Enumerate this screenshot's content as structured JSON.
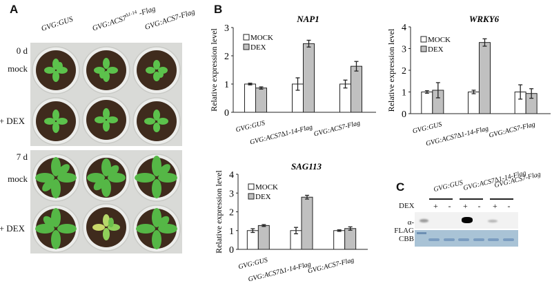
{
  "figure": {
    "panels": {
      "A": {
        "letter": "A",
        "column_headers": [
          "GVG:GUS",
          "GVG:ACS7∆1-14-Flag",
          "GVG:ACS7-Flag"
        ],
        "column_header_display": [
          {
            "base": "GVG:GUS",
            "sup": "",
            "tail": ""
          },
          {
            "base": "GVG:ACS7",
            "sup": "∆1-14",
            "tail": " -Flag"
          },
          {
            "base": "GVG:ACS7-Flag",
            "sup": "",
            "tail": ""
          }
        ],
        "timepoints": [
          {
            "label": "0 d",
            "rows": [
              "mock",
              "+ DEX"
            ]
          },
          {
            "label": "7 d",
            "rows": [
              "mock",
              "+ DEX"
            ]
          }
        ]
      },
      "B": {
        "letter": "B"
      },
      "C": {
        "letter": "C",
        "lane_groups": [
          "GVG:GUS",
          "GVG:ACS7∆1-14-Flag",
          "GVG:ACS7-Flag"
        ],
        "dex_row_label": "DEX",
        "dex_signs": [
          "+",
          "-",
          "+",
          "-",
          "+",
          "-"
        ],
        "blot_rows": [
          "α-FLAG",
          "CBB"
        ]
      }
    },
    "colors": {
      "mock_fill": "#ffffff",
      "dex_fill": "#c0c0c0",
      "bar_stroke": "#222222",
      "leaf_green": "#58b84a",
      "soil_brown": "#3e2a1c",
      "cbb_blue": "#a9c3d6"
    }
  },
  "chart_data": [
    {
      "type": "bar",
      "title": "NAP1",
      "ylabel": "Relative expression level",
      "xlabel": "",
      "ylim": [
        0,
        3
      ],
      "yticks": [
        0,
        1,
        2,
        3
      ],
      "categories": [
        "GVG:GUS",
        "GVG:ACS7∆1-14-Flag",
        "GVG:ACS7-Flag"
      ],
      "legend": [
        "MOCK",
        "DEX"
      ],
      "legend_position": "upper-left",
      "series": [
        {
          "name": "MOCK",
          "values": [
            1.0,
            1.0,
            1.0
          ],
          "errors": [
            0.03,
            0.22,
            0.14
          ]
        },
        {
          "name": "DEX",
          "values": [
            0.86,
            2.43,
            1.63
          ],
          "errors": [
            0.04,
            0.12,
            0.17
          ]
        }
      ]
    },
    {
      "type": "bar",
      "title": "WRKY6",
      "ylabel": "Relative expression level",
      "xlabel": "",
      "ylim": [
        0,
        4
      ],
      "yticks": [
        0,
        1,
        2,
        3,
        4
      ],
      "categories": [
        "GVG:GUS",
        "GVG:ACS7∆1-14-Flag",
        "GVG:ACS7-Flag"
      ],
      "legend": [
        "MOCK",
        "DEX"
      ],
      "legend_position": "upper-left",
      "series": [
        {
          "name": "MOCK",
          "values": [
            1.0,
            1.0,
            1.0
          ],
          "errors": [
            0.06,
            0.08,
            0.33
          ]
        },
        {
          "name": "DEX",
          "values": [
            1.08,
            3.28,
            0.93
          ],
          "errors": [
            0.35,
            0.17,
            0.22
          ]
        }
      ]
    },
    {
      "type": "bar",
      "title": "SAG113",
      "ylabel": "Relative expression level",
      "xlabel": "",
      "ylim": [
        0,
        4
      ],
      "yticks": [
        0,
        1,
        2,
        3,
        4
      ],
      "categories": [
        "GVG:GUS",
        "GVG:ACS7∆1-14-Flag",
        "GVG:ACS7-Flag"
      ],
      "legend": [
        "MOCK",
        "DEX"
      ],
      "legend_position": "upper-left",
      "series": [
        {
          "name": "MOCK",
          "values": [
            1.0,
            1.0,
            1.0
          ],
          "errors": [
            0.1,
            0.17,
            0.04
          ]
        },
        {
          "name": "DEX",
          "values": [
            1.27,
            2.78,
            1.11
          ],
          "errors": [
            0.05,
            0.1,
            0.09
          ]
        }
      ]
    }
  ]
}
